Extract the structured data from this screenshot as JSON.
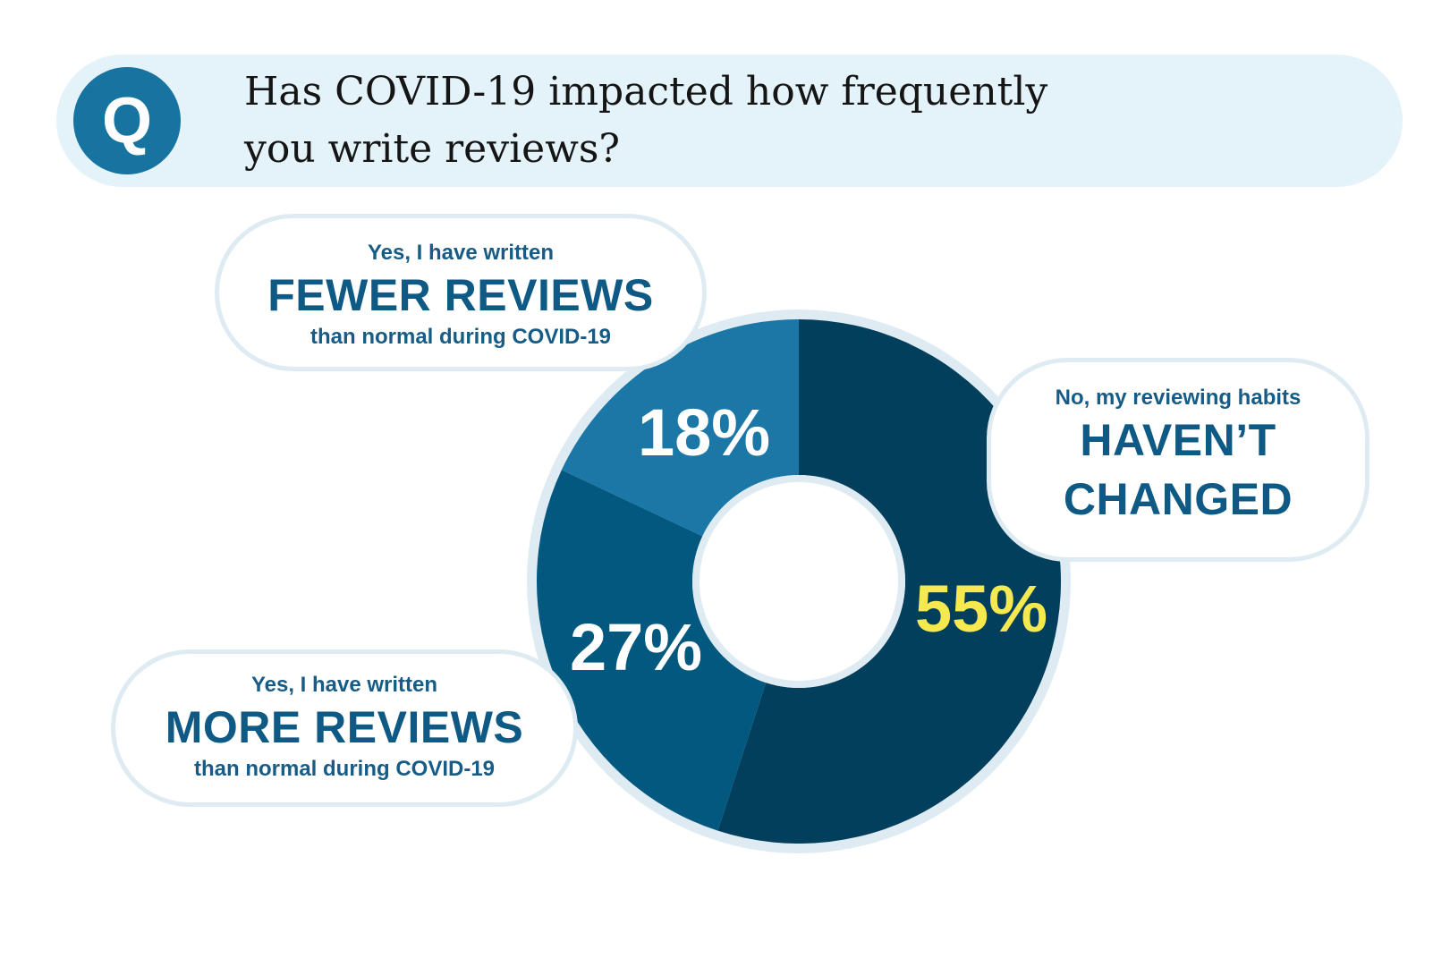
{
  "question": {
    "badge": "Q",
    "line1": "Has COVID-19 impacted how frequently",
    "line2": "you write reviews?"
  },
  "chart_data": {
    "type": "pie",
    "title": "Has COVID-19 impacted how frequently you write reviews?",
    "slices": [
      {
        "label": "No, my reviewing habits HAVEN’T CHANGED",
        "value": 55,
        "display": "55%",
        "color": "#023f5d",
        "label_color": "#f5e94f"
      },
      {
        "label": "Yes, I have written MORE REVIEWS than normal during COVID-19",
        "value": 27,
        "display": "27%",
        "color": "#02587f",
        "label_color": "#ffffff"
      },
      {
        "label": "Yes, I have written FEWER REVIEWS than normal during COVID-19",
        "value": 18,
        "display": "18%",
        "color": "#1a77a6",
        "label_color": "#ffffff"
      }
    ]
  },
  "bubbles": {
    "fewer": {
      "small_top": "Yes, I have written",
      "big": "FEWER REVIEWS",
      "small_bottom": "than normal during COVID-19"
    },
    "more": {
      "small_top": "Yes, I have written",
      "big": "MORE REVIEWS",
      "small_bottom": "than normal during COVID-19"
    },
    "same": {
      "small_top": "No, my reviewing habits",
      "big_line1": "HAVEN’T",
      "big_line2": "CHANGED"
    }
  }
}
